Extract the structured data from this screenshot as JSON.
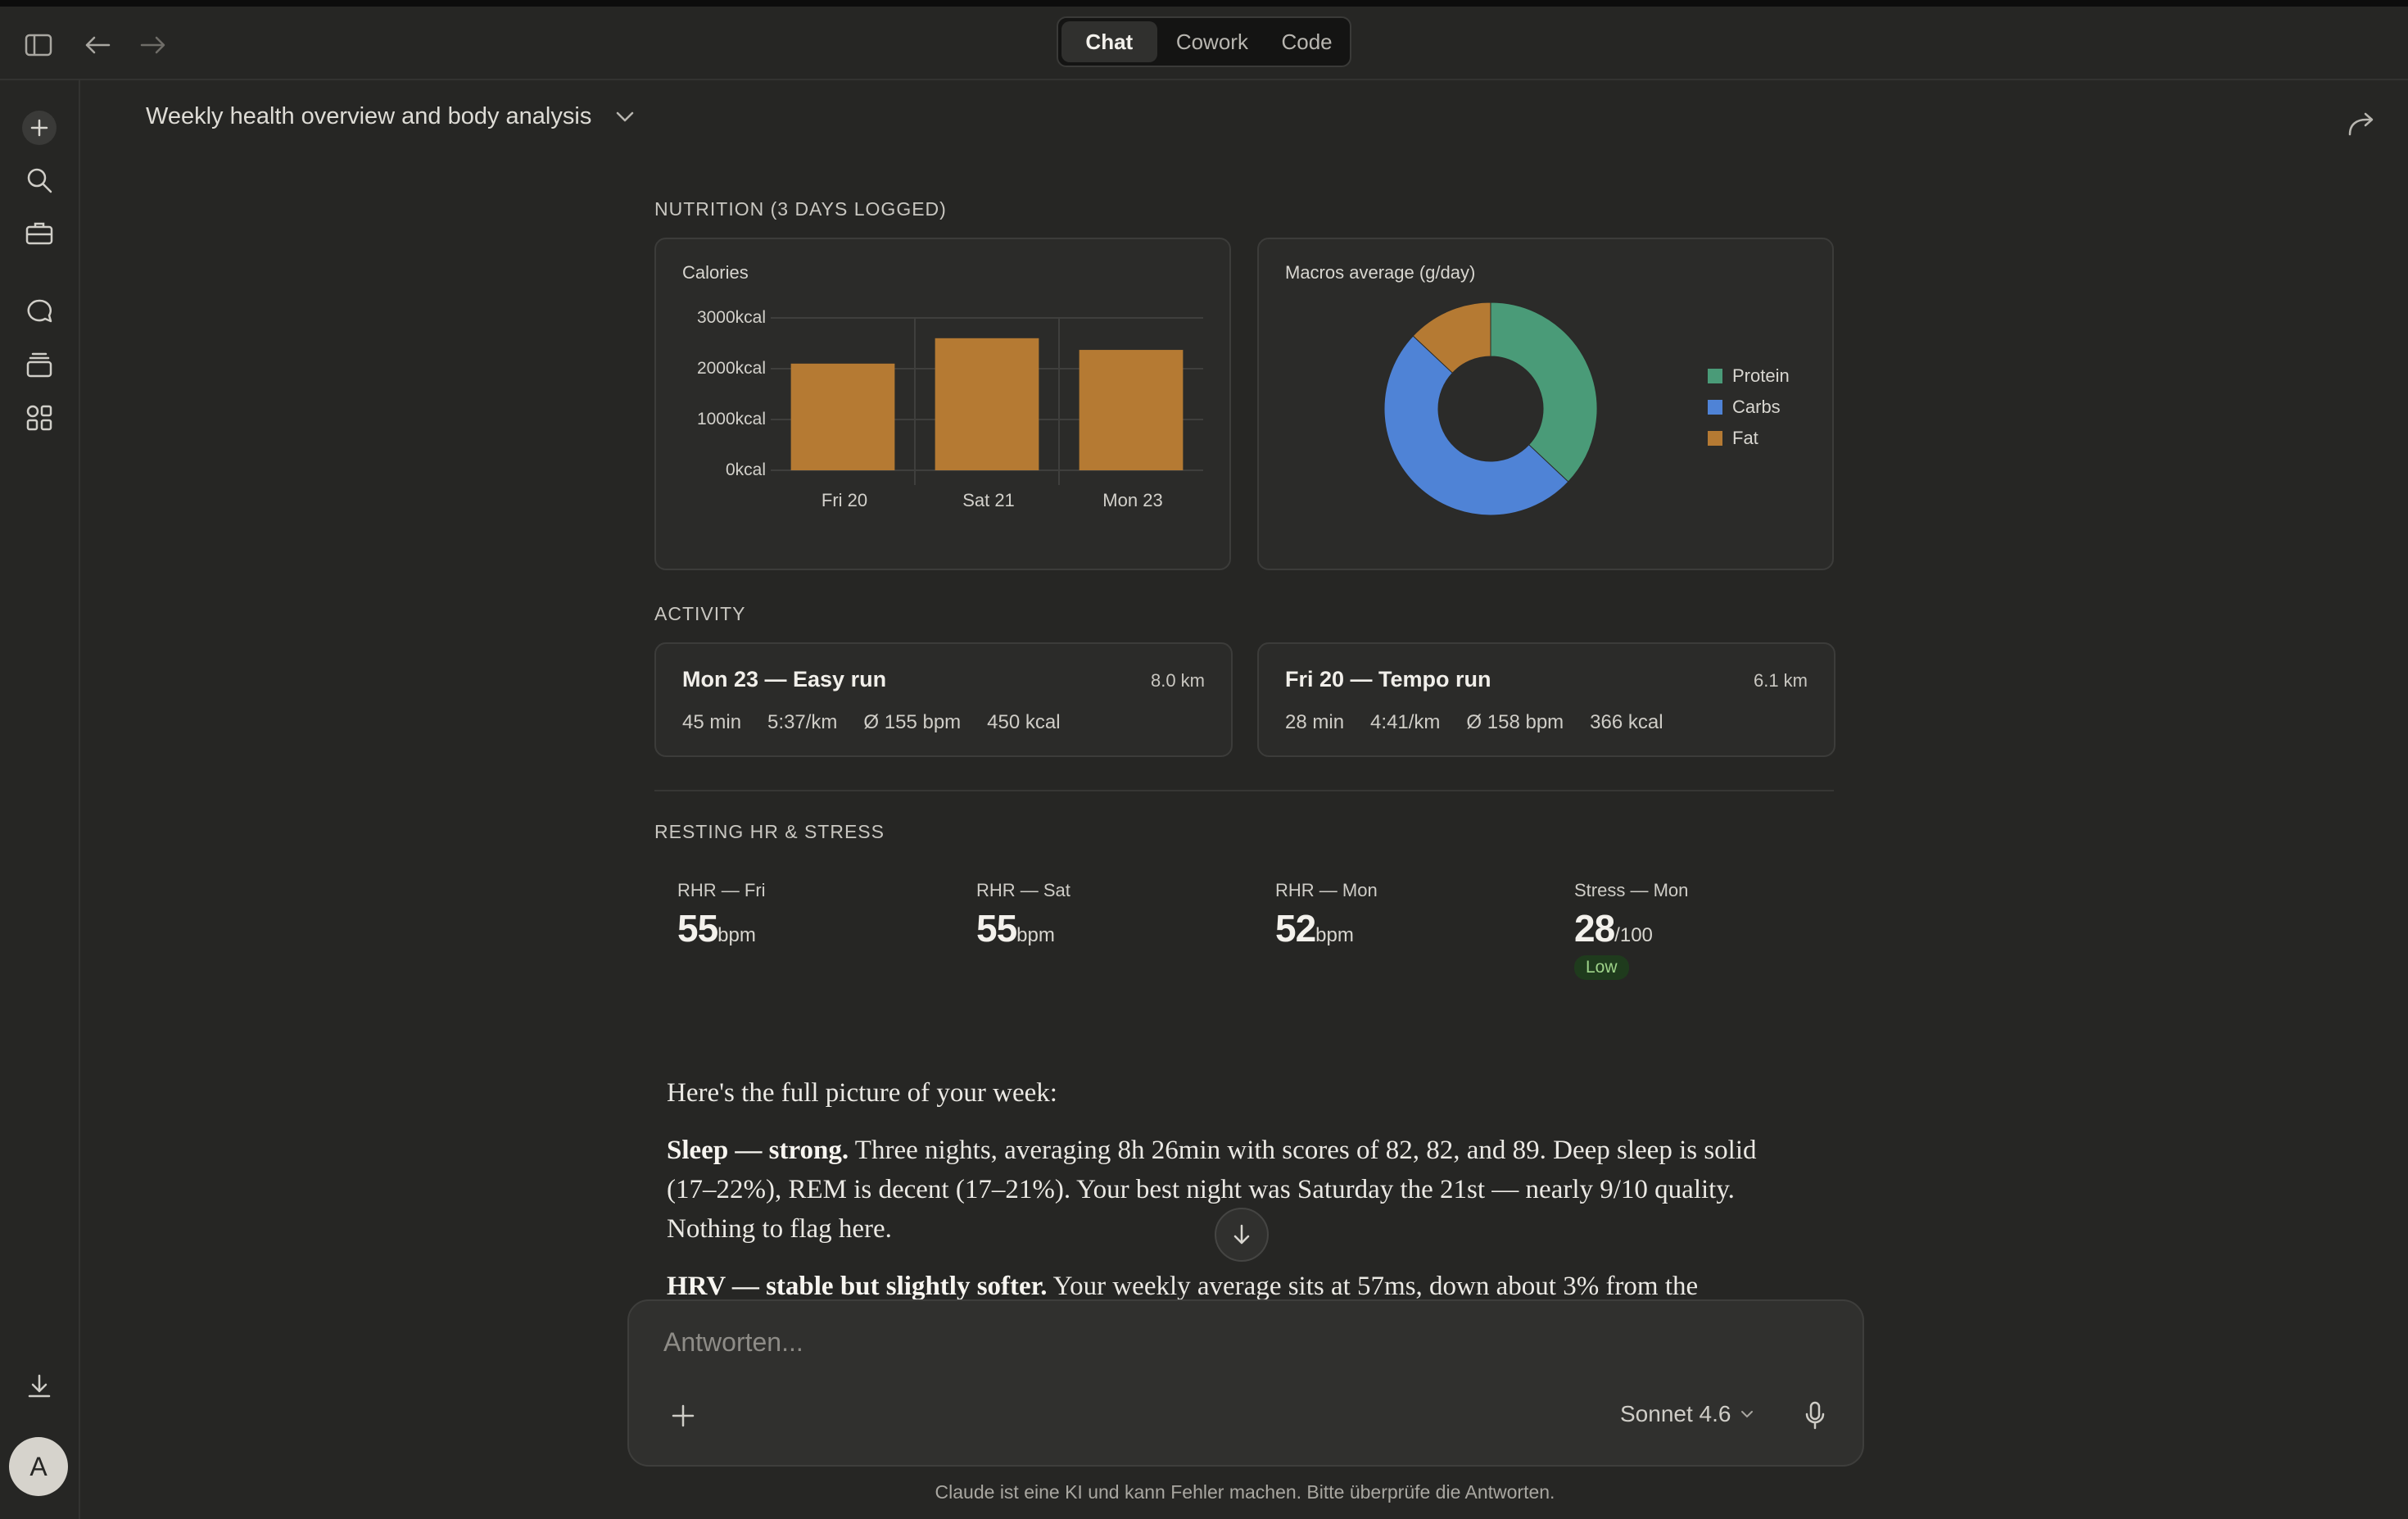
{
  "app": {
    "modes": [
      "Chat",
      "Cowork",
      "Code"
    ],
    "active_mode": "Chat"
  },
  "icons": {
    "sidebar_toggle": "sidebar-toggle-icon",
    "back": "arrow-left-icon",
    "forward": "arrow-right-icon",
    "new_chat": "plus-icon",
    "search": "search-icon",
    "tools": "briefcase-icon",
    "chats": "chat-bubble-icon",
    "projects": "stack-icon",
    "artifacts": "grid-icon",
    "download": "download-icon",
    "share": "share-icon"
  },
  "conversation": {
    "title": "Weekly health overview and body analysis"
  },
  "nutrition": {
    "label": "NUTRITION (3 DAYS LOGGED)",
    "calories_title": "Calories",
    "macros_title": "Macros average (g/day)"
  },
  "chart_data": [
    {
      "type": "bar",
      "title": "Calories",
      "categories": [
        "Fri 20",
        "Sat 21",
        "Mon 23"
      ],
      "values": [
        2100,
        2600,
        2370
      ],
      "ylim": [
        0,
        3000
      ],
      "yticks": [
        "0kcal",
        "1000kcal",
        "2000kcal",
        "3000kcal"
      ],
      "grid": true,
      "colors": [
        "#b57a33"
      ]
    },
    {
      "type": "pie",
      "title": "Macros average (g/day)",
      "categories": [
        "Protein",
        "Carbs",
        "Fat"
      ],
      "values": [
        37,
        50,
        13
      ],
      "colors": [
        "#4a9b78",
        "#4f83d6",
        "#b57a33"
      ],
      "legend": "right"
    }
  ],
  "activity": {
    "label": "ACTIVITY",
    "cards": [
      {
        "title": "Mon 23 — Easy run",
        "distance": "8.0 km",
        "duration": "45 min",
        "pace": "5:37/km",
        "hr": "Ø 155 bpm",
        "kcal": "450 kcal"
      },
      {
        "title": "Fri 20 — Tempo run",
        "distance": "6.1 km",
        "duration": "28 min",
        "pace": "4:41/km",
        "hr": "Ø 158 bpm",
        "kcal": "366 kcal"
      }
    ]
  },
  "rhr": {
    "label": "RESTING HR & STRESS",
    "metrics": [
      {
        "label": "RHR — Fri",
        "value": "55",
        "unit": "bpm"
      },
      {
        "label": "RHR — Sat",
        "value": "55",
        "unit": "bpm"
      },
      {
        "label": "RHR — Mon",
        "value": "52",
        "unit": "bpm"
      },
      {
        "label": "Stress — Mon",
        "value": "28",
        "unit": "/100",
        "badge": "Low"
      }
    ]
  },
  "message": {
    "intro": "Here's the full picture of your week:",
    "sleep_bold": "Sleep — strong.",
    "sleep_text": " Three nights, averaging 8h 26min with scores of 82, 82, and 89. Deep sleep is solid (17–22%), REM is decent (17–21%). Your best night was Saturday the 21st — nearly 9/10 quality. Nothing to flag here.",
    "hrv_bold": "HRV — stable but slightly softer.",
    "hrv_text": " Your weekly average sits at 57ms, down about 3% from the"
  },
  "composer": {
    "placeholder": "Antworten...",
    "model": "Sonnet 4.6"
  },
  "footer": {
    "disclaimer": "Claude ist eine KI und kann Fehler machen. Bitte überprüfe die Antworten."
  },
  "user": {
    "avatar_initial": "A"
  }
}
